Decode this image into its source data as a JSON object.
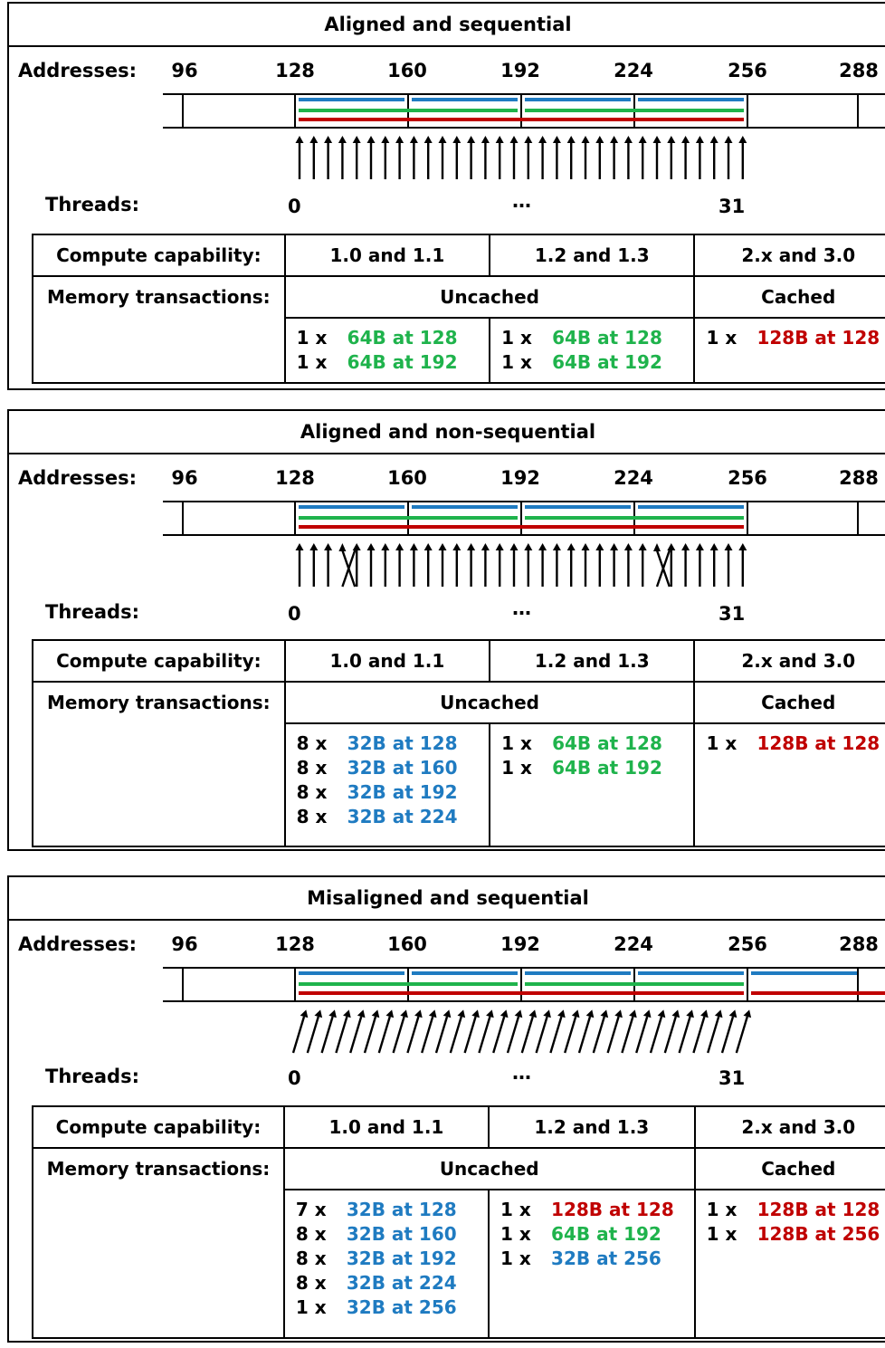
{
  "colors": {
    "blue": "#1f7bc1",
    "green": "#1fb34c",
    "red": "#c00000"
  },
  "labels": {
    "addresses": "Addresses:",
    "threads": "Threads:",
    "thread_first": "0",
    "thread_ellipsis": "…",
    "thread_last": "31"
  },
  "address_ticks": [
    "96",
    "128",
    "160",
    "192",
    "224",
    "256",
    "288"
  ],
  "table_headers": {
    "compute_capability": "Compute capability:",
    "memory_transactions": "Memory transactions:",
    "cc_10_11": "1.0 and 1.1",
    "cc_12_13": "1.2 and 1.3",
    "cc_2x_30": "2.x and 3.0",
    "uncached": "Uncached",
    "cached": "Cached"
  },
  "panels": [
    {
      "title": "Aligned and sequential",
      "pattern": "aligned-sequential",
      "transactions": {
        "cc_10_11": [
          {
            "mult": "1 x",
            "desc": "64B at 128",
            "color": "green"
          },
          {
            "mult": "1 x",
            "desc": "64B at 192",
            "color": "green"
          }
        ],
        "cc_12_13": [
          {
            "mult": "1 x",
            "desc": "64B at 128",
            "color": "green"
          },
          {
            "mult": "1 x",
            "desc": "64B at 192",
            "color": "green"
          }
        ],
        "cc_2x_30": [
          {
            "mult": "1 x",
            "desc": "128B at 128",
            "color": "red"
          }
        ]
      }
    },
    {
      "title": "Aligned and non-sequential",
      "pattern": "aligned-non-sequential",
      "transactions": {
        "cc_10_11": [
          {
            "mult": "8 x",
            "desc": "32B at 128",
            "color": "blue"
          },
          {
            "mult": "8 x",
            "desc": "32B at 160",
            "color": "blue"
          },
          {
            "mult": "8 x",
            "desc": "32B at 192",
            "color": "blue"
          },
          {
            "mult": "8 x",
            "desc": "32B at 224",
            "color": "blue"
          }
        ],
        "cc_12_13": [
          {
            "mult": "1 x",
            "desc": "64B at 128",
            "color": "green"
          },
          {
            "mult": "1 x",
            "desc": "64B at 192",
            "color": "green"
          }
        ],
        "cc_2x_30": [
          {
            "mult": "1 x",
            "desc": "128B at 128",
            "color": "red"
          }
        ]
      }
    },
    {
      "title": "Misaligned and sequential",
      "pattern": "misaligned-sequential",
      "transactions": {
        "cc_10_11": [
          {
            "mult": "7 x",
            "desc": "32B at 128",
            "color": "blue"
          },
          {
            "mult": "8 x",
            "desc": "32B at 160",
            "color": "blue"
          },
          {
            "mult": "8 x",
            "desc": "32B at 192",
            "color": "blue"
          },
          {
            "mult": "8 x",
            "desc": "32B at 224",
            "color": "blue"
          },
          {
            "mult": "1 x",
            "desc": "32B at 256",
            "color": "blue"
          }
        ],
        "cc_12_13": [
          {
            "mult": "1 x",
            "desc": "128B at 128",
            "color": "red"
          },
          {
            "mult": "1 x",
            "desc": "64B at 192",
            "color": "green"
          },
          {
            "mult": "1 x",
            "desc": "32B at 256",
            "color": "blue"
          }
        ],
        "cc_2x_30": [
          {
            "mult": "1 x",
            "desc": "128B at 128",
            "color": "red"
          },
          {
            "mult": "1 x",
            "desc": "128B at 256",
            "color": "red"
          }
        ]
      }
    }
  ]
}
